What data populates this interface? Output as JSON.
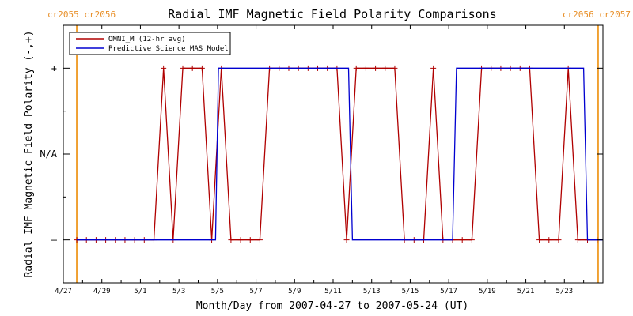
{
  "chart_data": {
    "type": "line",
    "title": "Radial IMF Magnetic Field Polarity Comparisons",
    "xlabel": "Month/Day from 2007-04-27 to 2007-05-24 (UT)",
    "ylabel": "Radial IMF Magnetic Field Polarity (-,+)",
    "x_units": "days since 2007-04-27 00:00 UT",
    "xlim": [
      0,
      28
    ],
    "ylim": [
      -1.5,
      1.5
    ],
    "x_ticks": [
      {
        "x": 0,
        "label": "4/27"
      },
      {
        "x": 2,
        "label": "4/29"
      },
      {
        "x": 4,
        "label": "5/1"
      },
      {
        "x": 6,
        "label": "5/3"
      },
      {
        "x": 8,
        "label": "5/5"
      },
      {
        "x": 10,
        "label": "5/7"
      },
      {
        "x": 12,
        "label": "5/9"
      },
      {
        "x": 14,
        "label": "5/11"
      },
      {
        "x": 16,
        "label": "5/13"
      },
      {
        "x": 18,
        "label": "5/15"
      },
      {
        "x": 20,
        "label": "5/17"
      },
      {
        "x": 22,
        "label": "5/19"
      },
      {
        "x": 24,
        "label": "5/21"
      },
      {
        "x": 26,
        "label": "5/23"
      }
    ],
    "y_ticks": [
      {
        "y": 1,
        "label": "+"
      },
      {
        "y": 0,
        "label": "N/A"
      },
      {
        "y": -1,
        "label": "–"
      }
    ],
    "carrington_markers": [
      {
        "x": 0.7,
        "label": "cr2055 cr2056",
        "position": "left",
        "color": "#f0a030"
      },
      {
        "x": 27.75,
        "label": "cr2056 cr2057",
        "position": "right",
        "color": "#f0a030"
      }
    ],
    "legend": {
      "placement": "top-left",
      "entries": [
        {
          "label": "OMNI_M (12-hr avg)",
          "color": "#b00000"
        },
        {
          "label": "Predictive Science MAS Model",
          "color": "#0000d0"
        }
      ]
    },
    "series": [
      {
        "name": "OMNI_M (12-hr avg)",
        "color": "#b00000",
        "marker": "+",
        "x": [
          0.7,
          1.2,
          1.7,
          2.2,
          2.7,
          3.2,
          3.7,
          4.2,
          4.7,
          5.2,
          5.7,
          6.2,
          6.7,
          7.2,
          7.7,
          8.2,
          8.7,
          9.2,
          9.7,
          10.2,
          10.7,
          11.2,
          11.7,
          12.2,
          12.7,
          13.2,
          13.7,
          14.2,
          14.7,
          15.2,
          15.7,
          16.2,
          16.7,
          17.2,
          17.7,
          18.2,
          18.7,
          19.2,
          19.7,
          20.2,
          20.7,
          21.2,
          21.7,
          22.2,
          22.7,
          23.2,
          23.7,
          24.2,
          24.7,
          25.2,
          25.7,
          26.2,
          26.7,
          27.2,
          27.7
        ],
        "y": [
          -1,
          -1,
          -1,
          -1,
          -1,
          -1,
          -1,
          -1,
          -1,
          1,
          -1,
          1,
          1,
          1,
          -1,
          1,
          -1,
          -1,
          -1,
          -1,
          1,
          1,
          1,
          1,
          1,
          1,
          1,
          1,
          -1,
          1,
          1,
          1,
          1,
          1,
          -1,
          -1,
          -1,
          1,
          -1,
          -1,
          -1,
          -1,
          1,
          1,
          1,
          1,
          1,
          1,
          -1,
          -1,
          -1,
          1,
          -1,
          -1,
          -1
        ]
      },
      {
        "name": "Predictive Science MAS Model",
        "color": "#0000d0",
        "marker": "none",
        "step_points": [
          [
            0.7,
            -1
          ],
          [
            7.9,
            -1
          ],
          [
            8.05,
            1
          ],
          [
            14.8,
            1
          ],
          [
            15.0,
            -1
          ],
          [
            20.2,
            -1
          ],
          [
            20.4,
            1
          ],
          [
            27.0,
            1
          ],
          [
            27.2,
            -1
          ],
          [
            28,
            -1
          ]
        ]
      }
    ]
  }
}
